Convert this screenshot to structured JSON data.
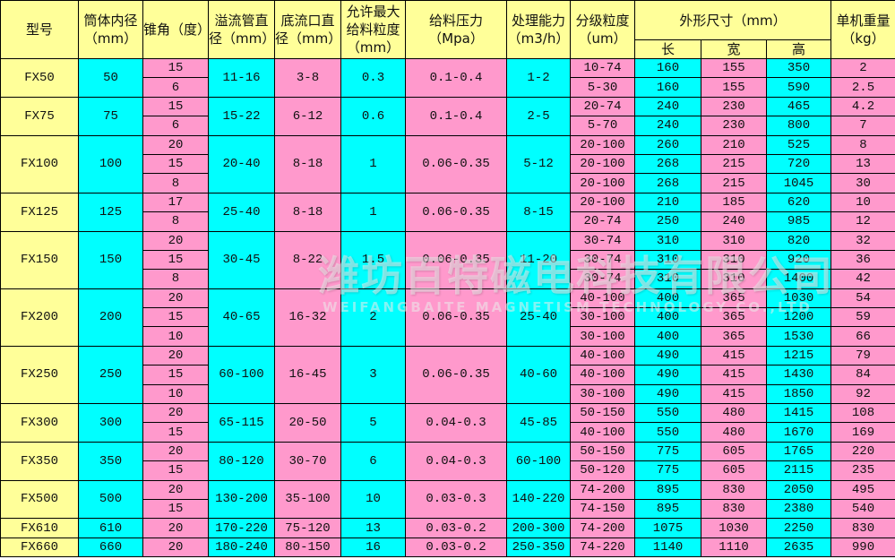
{
  "header": {
    "model": "型号",
    "diameter": "筒体内径（mm）",
    "cone": "锥角（度）",
    "overflow": "溢流管直径（mm）",
    "underflow": "底流口直径（mm）",
    "feed_size": "允许最大给料粒度（mm）",
    "pressure": "给料压力（Mpa）",
    "capacity": "处理能力（m3/h）",
    "cut": "分级粒度（um）",
    "dims": "外形尺寸（mm）",
    "length": "长",
    "width": "宽",
    "height": "高",
    "weight": "单机重量（kg）"
  },
  "colors": {
    "yellow": "#FFFF99",
    "cyan": "#00FFFF",
    "pink": "#FF99CC"
  },
  "models": [
    {
      "model": "FX50",
      "diameter": "50",
      "overflow": "11-16",
      "underflow": "3-8",
      "feed_size": "0.3",
      "pressure": "0.1-0.4",
      "capacity": "1-2",
      "rows": [
        [
          "15",
          "10-74",
          "160",
          "155",
          "350",
          "2"
        ],
        [
          "6",
          "5-30",
          "160",
          "155",
          "590",
          "2.5"
        ]
      ]
    },
    {
      "model": "FX75",
      "diameter": "75",
      "overflow": "15-22",
      "underflow": "6-12",
      "feed_size": "0.6",
      "pressure": "0.1-0.4",
      "capacity": "2-5",
      "rows": [
        [
          "15",
          "20-74",
          "240",
          "230",
          "465",
          "4.2"
        ],
        [
          "6",
          "5-70",
          "240",
          "230",
          "800",
          "7"
        ]
      ]
    },
    {
      "model": "FX100",
      "diameter": "100",
      "overflow": "20-40",
      "underflow": "8-18",
      "feed_size": "1",
      "pressure": "0.06-0.35",
      "capacity": "5-12",
      "rows": [
        [
          "20",
          "20-100",
          "260",
          "210",
          "525",
          "8"
        ],
        [
          "15",
          "20-100",
          "268",
          "215",
          "720",
          "13"
        ],
        [
          "8",
          "20-100",
          "268",
          "215",
          "1045",
          "30"
        ]
      ]
    },
    {
      "model": "FX125",
      "diameter": "125",
      "overflow": "25-40",
      "underflow": "8-18",
      "feed_size": "1",
      "pressure": "0.06-0.35",
      "capacity": "8-15",
      "rows": [
        [
          "17",
          "20-100",
          "210",
          "185",
          "620",
          "10"
        ],
        [
          "8",
          "20-74",
          "250",
          "240",
          "985",
          "12"
        ]
      ]
    },
    {
      "model": "FX150",
      "diameter": "150",
      "overflow": "30-45",
      "underflow": "8-22",
      "feed_size": "1.5",
      "pressure": "0.06-0.35",
      "capacity": "11-20",
      "rows": [
        [
          "20",
          "30-74",
          "310",
          "310",
          "820",
          "32"
        ],
        [
          "15",
          "30-74",
          "310",
          "310",
          "920",
          "36"
        ],
        [
          "8",
          "30-74",
          "310",
          "310",
          "1400",
          "42"
        ]
      ]
    },
    {
      "model": "FX200",
      "diameter": "200",
      "overflow": "40-65",
      "underflow": "16-32",
      "feed_size": "2",
      "pressure": "0.06-0.35",
      "capacity": "25-40",
      "rows": [
        [
          "20",
          "40-100",
          "400",
          "365",
          "1030",
          "54"
        ],
        [
          "15",
          "30-100",
          "400",
          "365",
          "1200",
          "59"
        ],
        [
          "10",
          "30-100",
          "400",
          "365",
          "1530",
          "66"
        ]
      ]
    },
    {
      "model": "FX250",
      "diameter": "250",
      "overflow": "60-100",
      "underflow": "16-45",
      "feed_size": "3",
      "pressure": "0.06-0.35",
      "capacity": "40-60",
      "rows": [
        [
          "20",
          "40-100",
          "490",
          "415",
          "1215",
          "79"
        ],
        [
          "15",
          "40-100",
          "490",
          "415",
          "1430",
          "84"
        ],
        [
          "10",
          "30-100",
          "490",
          "415",
          "1850",
          "92"
        ]
      ]
    },
    {
      "model": "FX300",
      "diameter": "300",
      "overflow": "65-115",
      "underflow": "20-50",
      "feed_size": "5",
      "pressure": "0.04-0.3",
      "capacity": "45-85",
      "rows": [
        [
          "20",
          "50-150",
          "550",
          "480",
          "1415",
          "108"
        ],
        [
          "15",
          "40-100",
          "550",
          "480",
          "1670",
          "169"
        ]
      ]
    },
    {
      "model": "FX350",
      "diameter": "350",
      "overflow": "80-120",
      "underflow": "30-70",
      "feed_size": "6",
      "pressure": "0.04-0.3",
      "capacity": "60-100",
      "rows": [
        [
          "20",
          "50-150",
          "775",
          "605",
          "1765",
          "220"
        ],
        [
          "15",
          "50-120",
          "775",
          "605",
          "2115",
          "235"
        ]
      ]
    },
    {
      "model": "FX500",
      "diameter": "500",
      "overflow": "130-200",
      "underflow": "35-100",
      "feed_size": "10",
      "pressure": "0.03-0.3",
      "capacity": "140-220",
      "rows": [
        [
          "20",
          "74-200",
          "895",
          "830",
          "2050",
          "495"
        ],
        [
          "15",
          "74-150",
          "895",
          "830",
          "2380",
          "540"
        ]
      ]
    },
    {
      "model": "FX610",
      "diameter": "610",
      "overflow": "170-220",
      "underflow": "75-120",
      "feed_size": "13",
      "pressure": "0.03-0.2",
      "capacity": "200-300",
      "rows": [
        [
          "20",
          "74-200",
          "1075",
          "1030",
          "2250",
          "830"
        ]
      ]
    },
    {
      "model": "FX660",
      "diameter": "660",
      "overflow": "180-240",
      "underflow": "80-150",
      "feed_size": "16",
      "pressure": "0.03-0.2",
      "capacity": "250-350",
      "rows": [
        [
          "20",
          "74-220",
          "1140",
          "1110",
          "2635",
          "990"
        ]
      ]
    }
  ],
  "watermark": {
    "cn": "潍坊百特磁电科技有限公司",
    "en": "WEIFANGBAITE MAGNETISM TECHNOLOGY CO.,LTD"
  }
}
